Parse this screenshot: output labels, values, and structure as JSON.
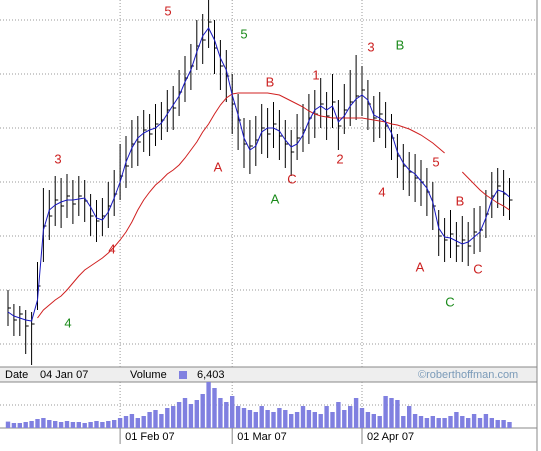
{
  "chart_data": {
    "type": "ohlc",
    "categories": [
      null,
      null,
      null,
      null,
      null,
      null,
      null,
      null,
      null,
      null,
      null,
      null,
      null,
      null,
      null,
      null,
      null,
      null,
      null,
      "01 Feb 07",
      null,
      null,
      null,
      null,
      null,
      null,
      null,
      null,
      null,
      null,
      null,
      null,
      null,
      null,
      null,
      null,
      null,
      null,
      "01 Mar 07",
      null,
      null,
      null,
      null,
      null,
      null,
      null,
      null,
      null,
      null,
      null,
      null,
      null,
      null,
      null,
      null,
      null,
      null,
      null,
      null,
      null,
      "02 Apr 07",
      null,
      null,
      null,
      null,
      null,
      null,
      null,
      null,
      null,
      null,
      null,
      null,
      null,
      null,
      null,
      null,
      null,
      null,
      null,
      null,
      null,
      null,
      null,
      null,
      null
    ],
    "high": [
      76,
      62,
      60,
      56,
      54,
      104,
      178,
      176,
      190,
      188,
      192,
      186,
      190,
      186,
      172,
      166,
      168,
      184,
      196,
      222,
      230,
      246,
      250,
      256,
      252,
      262,
      264,
      276,
      280,
      296,
      310,
      322,
      346,
      352,
      366,
      346,
      326,
      316,
      292,
      272,
      248,
      246,
      250,
      262,
      258,
      264,
      256,
      246,
      236,
      252,
      262,
      272,
      276,
      288,
      274,
      292,
      266,
      282,
      296,
      311,
      300,
      286,
      270,
      274,
      264,
      252,
      232,
      222,
      214,
      212,
      206,
      198,
      184,
      156,
      148,
      156,
      144,
      150,
      144,
      158,
      160,
      176,
      194,
      198,
      196,
      188
    ],
    "low": [
      40,
      30,
      30,
      12,
      1,
      56,
      104,
      126,
      140,
      138,
      148,
      142,
      150,
      144,
      130,
      124,
      130,
      138,
      150,
      166,
      178,
      198,
      200,
      214,
      210,
      220,
      226,
      234,
      236,
      250,
      264,
      276,
      296,
      302,
      318,
      292,
      276,
      264,
      232,
      216,
      198,
      192,
      200,
      212,
      208,
      218,
      206,
      198,
      190,
      206,
      214,
      222,
      228,
      238,
      226,
      238,
      216,
      232,
      240,
      246,
      250,
      236,
      224,
      228,
      218,
      206,
      188,
      176,
      170,
      164,
      160,
      150,
      136,
      110,
      104,
      108,
      104,
      104,
      100,
      112,
      114,
      128,
      148,
      158,
      150,
      146
    ],
    "close": [
      58,
      46,
      52,
      40,
      42,
      80,
      140,
      150,
      166,
      160,
      170,
      162,
      170,
      165,
      150,
      145,
      150,
      160,
      172,
      190,
      200,
      222,
      224,
      236,
      232,
      242,
      246,
      256,
      258,
      274,
      288,
      300,
      320,
      326,
      344,
      318,
      300,
      290,
      262,
      246,
      222,
      220,
      226,
      238,
      232,
      242,
      230,
      222,
      214,
      228,
      236,
      248,
      252,
      262,
      250,
      264,
      240,
      256,
      264,
      270,
      276,
      262,
      248,
      252,
      240,
      228,
      210,
      200,
      194,
      188,
      184,
      174,
      160,
      130,
      126,
      132,
      120,
      126,
      120,
      134,
      136,
      152,
      170,
      180,
      172,
      166
    ],
    "bar_color": "#000000",
    "ma_fast": {
      "color": "#1818c0",
      "values": [
        54,
        50,
        48,
        46,
        45,
        66,
        136,
        156,
        161,
        164,
        166,
        166,
        167,
        168,
        159,
        148,
        146,
        154,
        168,
        184,
        204,
        218,
        228,
        233,
        236,
        238,
        243,
        252,
        261,
        270,
        284,
        296,
        314,
        330,
        338,
        326,
        308,
        296,
        271,
        251,
        228,
        216,
        220,
        234,
        238,
        238,
        235,
        226,
        219,
        222,
        231,
        245,
        256,
        260,
        256,
        260,
        244,
        250,
        260,
        267,
        271,
        266,
        251,
        248,
        244,
        233,
        214,
        203,
        196,
        192,
        185,
        178,
        164,
        138,
        129,
        128,
        125,
        122,
        124,
        129,
        134,
        148,
        166,
        176,
        174,
        169
      ]
    },
    "ma_slow": {
      "color": "#d02020",
      "values": [
        null,
        null,
        null,
        null,
        null,
        48,
        56,
        61,
        66,
        70,
        76,
        83,
        90,
        96,
        100,
        104,
        108,
        113,
        119,
        126,
        134,
        144,
        156,
        166,
        174,
        181,
        186,
        192,
        196,
        201,
        208,
        216,
        224,
        234,
        242,
        252,
        261,
        268,
        272,
        273,
        273,
        273,
        273,
        273,
        273,
        272,
        271,
        268,
        265,
        262,
        259,
        255,
        252,
        250,
        249,
        248,
        248,
        248,
        248,
        248,
        248,
        247,
        246,
        245,
        244,
        242,
        241,
        239,
        237,
        234,
        231,
        227,
        223,
        218,
        213,
        null,
        null,
        194,
        188,
        182,
        176,
        171,
        167,
        163,
        160,
        156
      ]
    },
    "ylim": [
      0,
      366
    ],
    "ygrid": [
      22,
      76,
      130,
      184,
      238,
      292,
      346
    ],
    "grid": true,
    "volume": {
      "color": "#8080e0",
      "ylim": [
        0,
        46000
      ],
      "ygrid": [
        23000
      ],
      "values": [
        6403,
        5000,
        5000,
        6000,
        7000,
        9000,
        10000,
        8000,
        7000,
        6000,
        7000,
        6000,
        6000,
        5000,
        6000,
        7000,
        6000,
        7000,
        8000,
        10000,
        12000,
        14000,
        10000,
        12000,
        16000,
        18000,
        14000,
        20000,
        22000,
        26000,
        30000,
        24000,
        28000,
        34000,
        46000,
        40000,
        30000,
        26000,
        32000,
        22000,
        20000,
        18000,
        16000,
        22000,
        18000,
        16000,
        20000,
        18000,
        14000,
        16000,
        22000,
        18000,
        16000,
        14000,
        22000,
        16000,
        26000,
        18000,
        22000,
        30000,
        20000,
        16000,
        14000,
        12000,
        32000,
        30000,
        28000,
        12000,
        22000,
        14000,
        12000,
        10000,
        12000,
        10000,
        10000,
        12000,
        16000,
        12000,
        10000,
        14000,
        10000,
        14000,
        10000,
        8000,
        8000,
        6000
      ]
    },
    "annotations": [
      {
        "text": "5",
        "color": "#cc2020"
      },
      {
        "text": "5",
        "color": "#1a8a1a"
      },
      {
        "text": "3",
        "color": "#cc2020"
      },
      {
        "text": "4",
        "color": "#cc2020"
      },
      {
        "text": "4",
        "color": "#1a8a1a"
      },
      {
        "text": "A",
        "color": "#cc2020"
      },
      {
        "text": "A",
        "color": "#1a8a1a"
      },
      {
        "text": "B",
        "color": "#cc2020"
      },
      {
        "text": "C",
        "color": "#cc2020"
      },
      {
        "text": "1",
        "color": "#cc2020"
      },
      {
        "text": "2",
        "color": "#cc2020"
      },
      {
        "text": "3",
        "color": "#cc2020"
      },
      {
        "text": "B",
        "color": "#1a8a1a"
      },
      {
        "text": "4",
        "color": "#cc2020"
      },
      {
        "text": "5",
        "color": "#cc2020"
      },
      {
        "text": "A",
        "color": "#cc2020"
      },
      {
        "text": "B",
        "color": "#cc2020"
      },
      {
        "text": "C",
        "color": "#cc2020"
      },
      {
        "text": "C",
        "color": "#1a8a1a"
      }
    ]
  },
  "status": {
    "date_label": "Date",
    "date": "04 Jan 07",
    "volume_label": "Volume",
    "volume": "6,403",
    "copyright": "©roberthoffman.com"
  }
}
